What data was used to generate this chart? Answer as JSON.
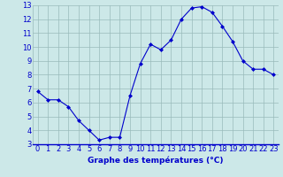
{
  "hours": [
    0,
    1,
    2,
    3,
    4,
    5,
    6,
    7,
    8,
    9,
    10,
    11,
    12,
    13,
    14,
    15,
    16,
    17,
    18,
    19,
    20,
    21,
    22,
    23
  ],
  "temps": [
    6.8,
    6.2,
    6.2,
    5.7,
    4.7,
    4.0,
    3.3,
    3.5,
    3.5,
    6.5,
    8.8,
    10.2,
    9.8,
    10.5,
    12.0,
    12.8,
    12.9,
    12.5,
    11.5,
    10.4,
    9.0,
    8.4,
    8.4,
    8.0
  ],
  "ylim": [
    3,
    13
  ],
  "yticks": [
    3,
    4,
    5,
    6,
    7,
    8,
    9,
    10,
    11,
    12,
    13
  ],
  "xticks": [
    0,
    1,
    2,
    3,
    4,
    5,
    6,
    7,
    8,
    9,
    10,
    11,
    12,
    13,
    14,
    15,
    16,
    17,
    18,
    19,
    20,
    21,
    22,
    23
  ],
  "line_color": "#0000cc",
  "marker": "D",
  "marker_size": 2.0,
  "bg_color": "#cce8e8",
  "grid_color": "#99bbbb",
  "xlabel": "Graphe des températures (°C)",
  "xlabel_color": "#0000cc",
  "tick_color": "#0000cc",
  "axis_label_fontsize": 6.5,
  "tick_fontsize": 6.0
}
